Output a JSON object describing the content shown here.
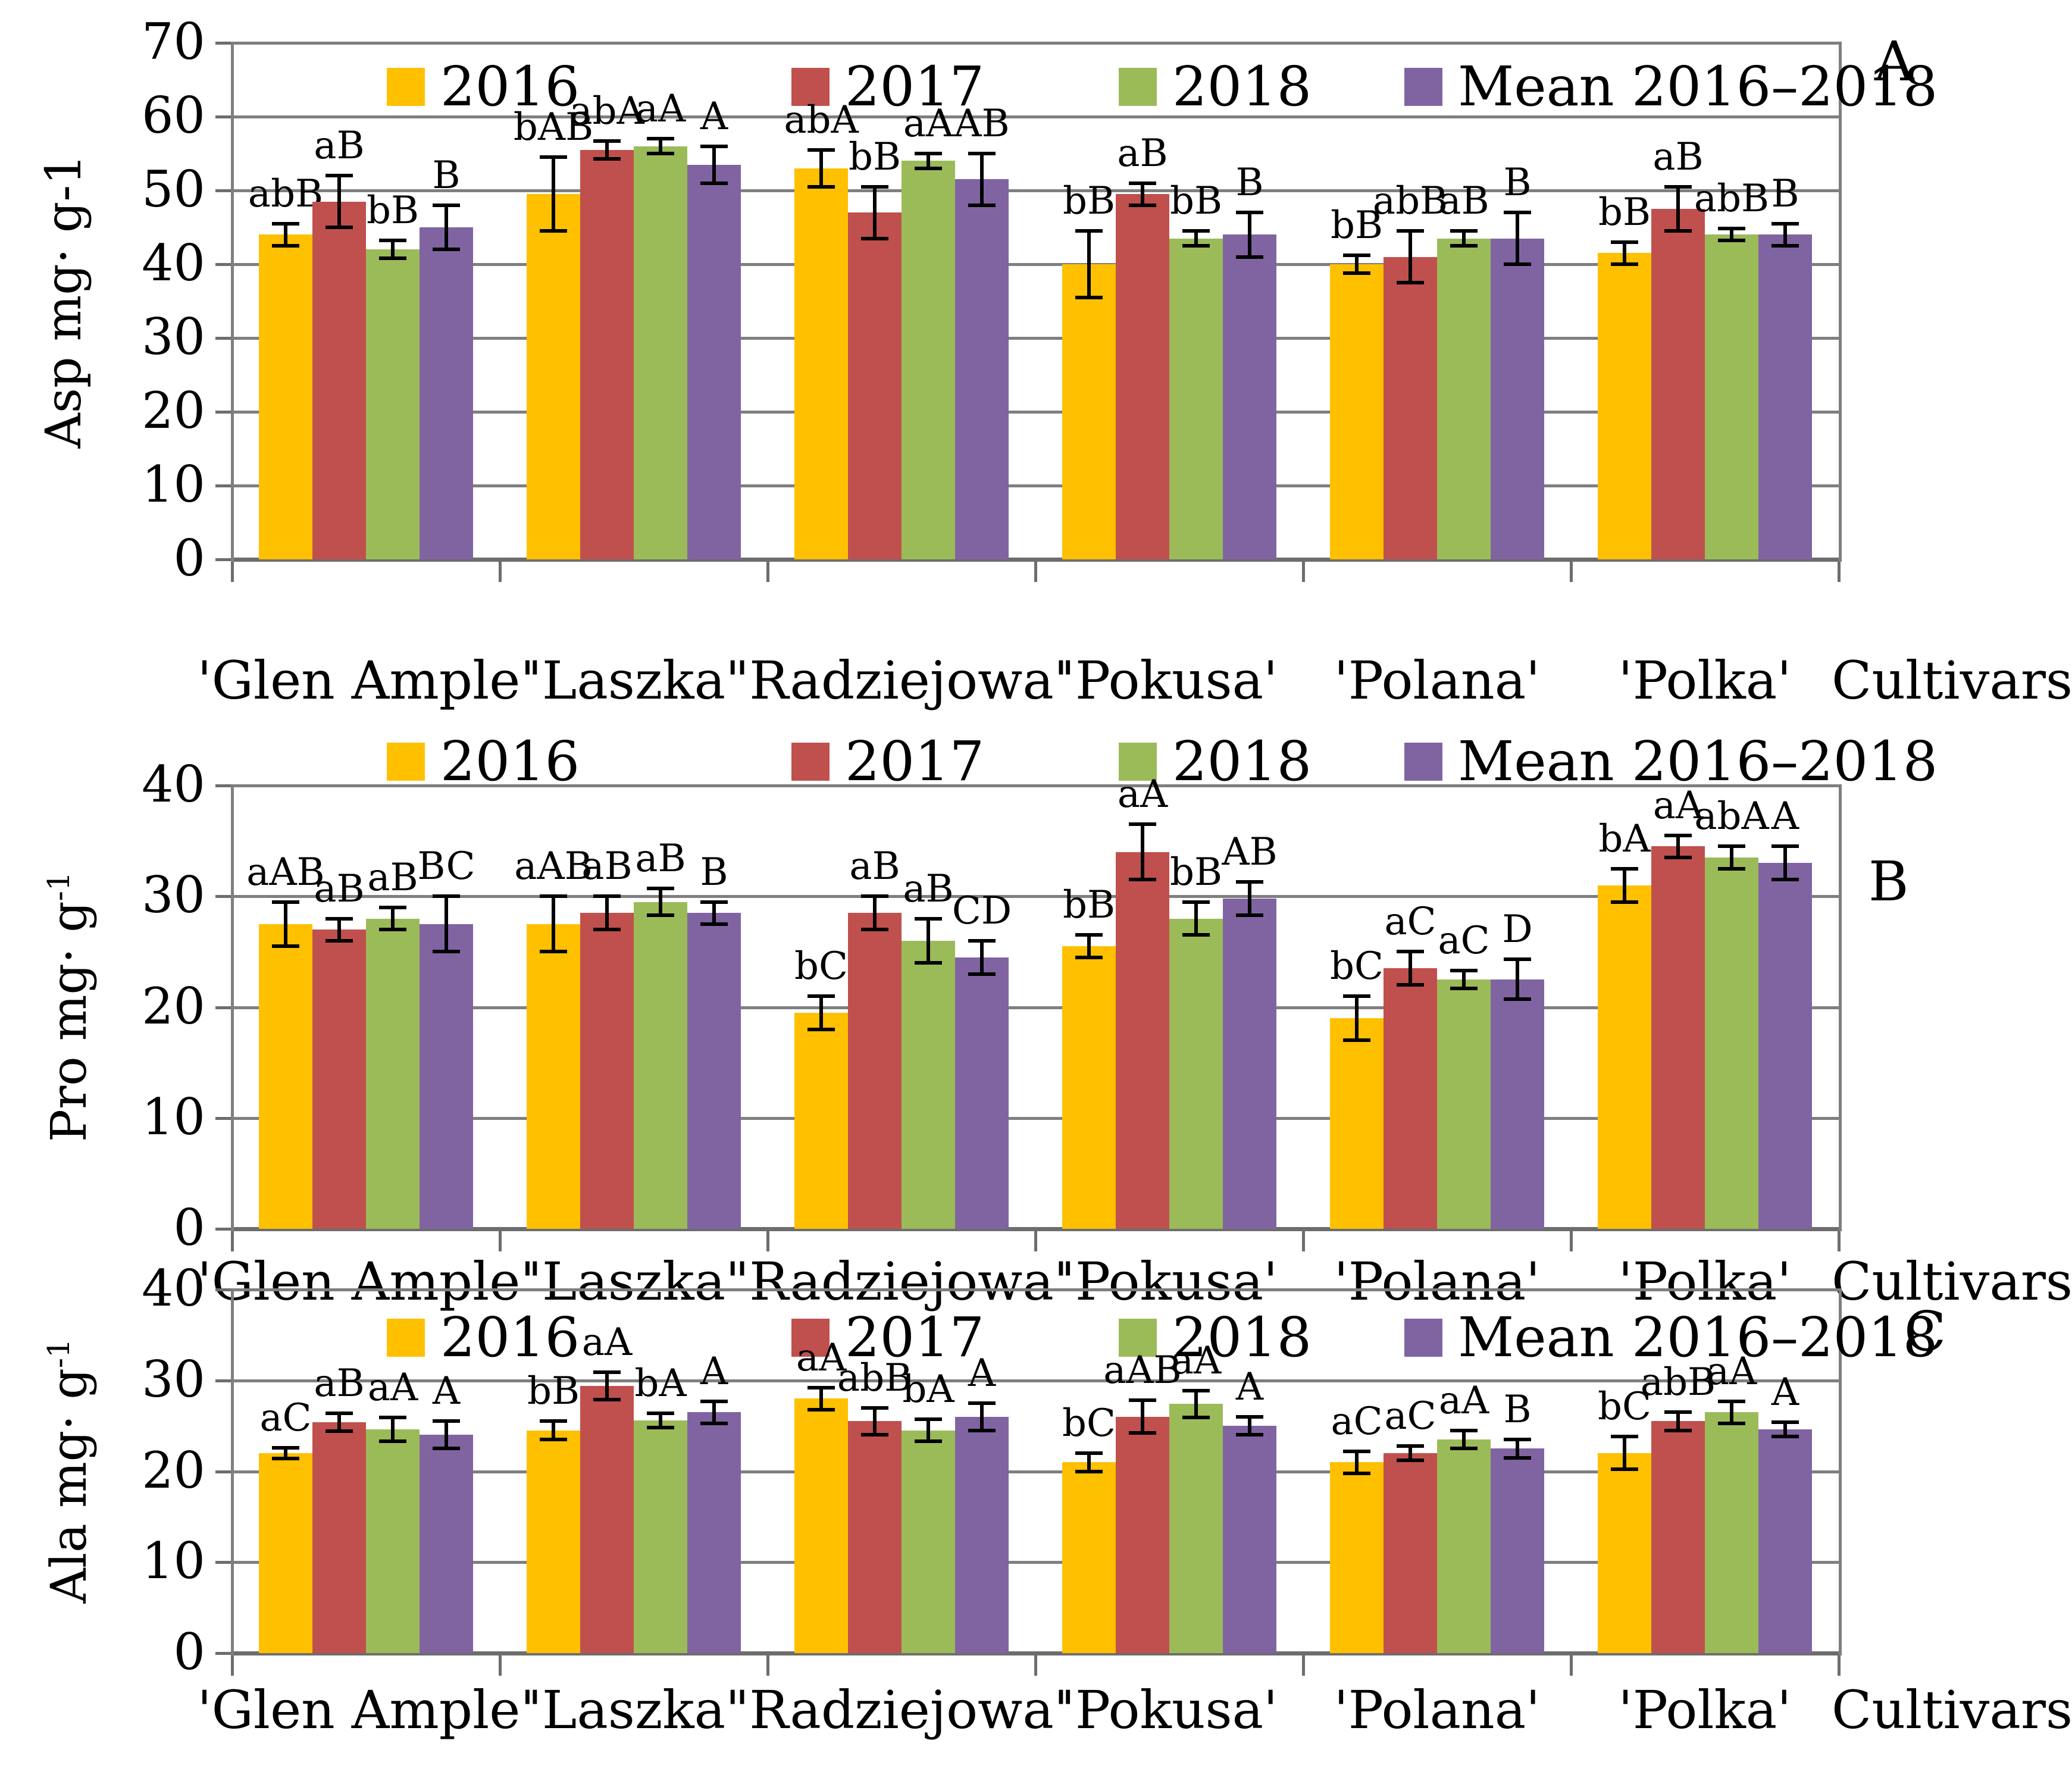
{
  "figure": {
    "x_axis_title": "Cultivars",
    "categories": [
      "'Glen Ample'",
      "'Laszka'",
      "'Radziejowa'",
      "'Pokusa'",
      "'Polana'",
      "'Polka'"
    ],
    "legend_labels": [
      "2016",
      "2017",
      "2018",
      "Mean 2016–2018"
    ],
    "panel_letters": [
      "A",
      "B",
      "C"
    ],
    "colors": {
      "year_2016": "#FFC000",
      "year_2017": "#C0504D",
      "year_2018": "#9BBB59",
      "mean": "#8064A2",
      "gridline": "#7F7F7F",
      "axis": "#6D6D6D",
      "error_bar": "#000000",
      "text": "#000000"
    }
  },
  "chart_data": [
    {
      "type": "bar",
      "panel": "A",
      "ylabel": {
        "text": "Asp mg· g",
        "exponent": "-1",
        "superscript": false
      },
      "ylim": [
        0,
        70
      ],
      "ytick_step": 10,
      "grid": true,
      "legend_position": "top-inside",
      "categories": [
        "'Glen Ample'",
        "'Laszka'",
        "'Radziejowa'",
        "'Pokusa'",
        "'Polana'",
        "'Polka'"
      ],
      "series": [
        {
          "name": "2016",
          "color": "#FFC000",
          "values": [
            44,
            49.5,
            53,
            40,
            40,
            41.5
          ],
          "errors": [
            1.5,
            5,
            2.5,
            4.5,
            1.2,
            1.5
          ],
          "labels": [
            "abB",
            "bAB",
            "abA",
            "bB",
            "bB",
            "bB"
          ]
        },
        {
          "name": "2017",
          "color": "#C0504D",
          "values": [
            48.5,
            55.5,
            47,
            49.5,
            41,
            47.5
          ],
          "errors": [
            3.5,
            1.2,
            3.5,
            1.5,
            3.5,
            3
          ],
          "labels": [
            "aB",
            "abA",
            "bB",
            "aB",
            "abB",
            "aB"
          ]
        },
        {
          "name": "2018",
          "color": "#9BBB59",
          "values": [
            42,
            56,
            54,
            43.5,
            43.5,
            44
          ],
          "errors": [
            1.2,
            1,
            1,
            1,
            1,
            0.8
          ],
          "labels": [
            "bB",
            "aA",
            "aA",
            "bB",
            "aB",
            "abB"
          ]
        },
        {
          "name": "Mean 2016–2018",
          "color": "#8064A2",
          "values": [
            45,
            53.5,
            51.5,
            44,
            43.5,
            44
          ],
          "errors": [
            3,
            2.5,
            3.5,
            3,
            3.5,
            1.5
          ],
          "labels": [
            "B",
            "A",
            "AB",
            "B",
            "B",
            "B"
          ]
        }
      ]
    },
    {
      "type": "bar",
      "panel": "B",
      "ylabel": {
        "text": "Pro mg· g",
        "exponent": "-1",
        "superscript": true
      },
      "ylim": [
        0,
        40
      ],
      "ytick_step": 10,
      "grid": true,
      "legend_position": "top-outside",
      "categories": [
        "'Glen Ample'",
        "'Laszka'",
        "'Radziejowa'",
        "'Pokusa'",
        "'Polana'",
        "'Polka'"
      ],
      "series": [
        {
          "name": "2016",
          "color": "#FFC000",
          "values": [
            27.5,
            27.5,
            19.5,
            25.5,
            19,
            31
          ],
          "errors": [
            2,
            2.5,
            1.5,
            1,
            2,
            1.5
          ],
          "labels": [
            "aAB",
            "aAB",
            "bC",
            "bB",
            "bC",
            "bA"
          ]
        },
        {
          "name": "2017",
          "color": "#C0504D",
          "values": [
            27,
            28.5,
            28.5,
            34,
            23.5,
            34.5
          ],
          "errors": [
            1,
            1.5,
            1.5,
            2.5,
            1.5,
            1
          ],
          "labels": [
            "aB",
            "aB",
            "aB",
            "aA",
            "aC",
            "aA"
          ]
        },
        {
          "name": "2018",
          "color": "#9BBB59",
          "values": [
            28,
            29.5,
            26,
            28,
            22.5,
            33.5
          ],
          "errors": [
            1,
            1.2,
            2,
            1.5,
            0.8,
            1
          ],
          "labels": [
            "aB",
            "aB",
            "aB",
            "bB",
            "aC",
            "abA"
          ]
        },
        {
          "name": "Mean 2016–2018",
          "color": "#8064A2",
          "values": [
            27.5,
            28.5,
            24.5,
            29.8,
            22.5,
            33
          ],
          "errors": [
            2.5,
            1,
            1.5,
            1.5,
            1.8,
            1.5
          ],
          "labels": [
            "BC",
            "B",
            "CD",
            "AB",
            "D",
            "A"
          ]
        }
      ]
    },
    {
      "type": "bar",
      "panel": "C",
      "ylabel": {
        "text": "Ala mg· g",
        "exponent": "-1",
        "superscript": true
      },
      "ylim": [
        0,
        40
      ],
      "ytick_step": 10,
      "grid": true,
      "legend_position": "top-inside",
      "categories": [
        "'Glen Ample'",
        "'Laszka'",
        "'Radziejowa'",
        "'Pokusa'",
        "'Polana'",
        "'Polka'"
      ],
      "series": [
        {
          "name": "2016",
          "color": "#FFC000",
          "values": [
            22,
            24.5,
            28,
            21,
            21,
            22
          ],
          "errors": [
            0.6,
            1,
            1.2,
            1,
            1.2,
            1.8
          ],
          "labels": [
            "aC",
            "bB",
            "aA",
            "bC",
            "aC",
            "bC"
          ]
        },
        {
          "name": "2017",
          "color": "#C0504D",
          "values": [
            25.4,
            29.4,
            25.5,
            26,
            22,
            25.5
          ],
          "errors": [
            1,
            1.5,
            1.5,
            1.8,
            0.8,
            1
          ],
          "labels": [
            "aB",
            "aA",
            "abB",
            "aAB",
            "aC",
            "abB"
          ]
        },
        {
          "name": "2018",
          "color": "#9BBB59",
          "values": [
            24.6,
            25.6,
            24.5,
            27.4,
            23.5,
            26.5
          ],
          "errors": [
            1.3,
            0.8,
            1.2,
            1.5,
            1,
            1.2
          ],
          "labels": [
            "aA",
            "bA",
            "bA",
            "aA",
            "aA",
            "aA"
          ]
        },
        {
          "name": "Mean 2016–2018",
          "color": "#8064A2",
          "values": [
            24,
            26.5,
            26,
            25,
            22.5,
            24.6
          ],
          "errors": [
            1.5,
            1.2,
            1.5,
            1,
            1,
            0.8
          ],
          "labels": [
            "A",
            "A",
            "A",
            "A",
            "B",
            "A"
          ]
        }
      ]
    }
  ]
}
